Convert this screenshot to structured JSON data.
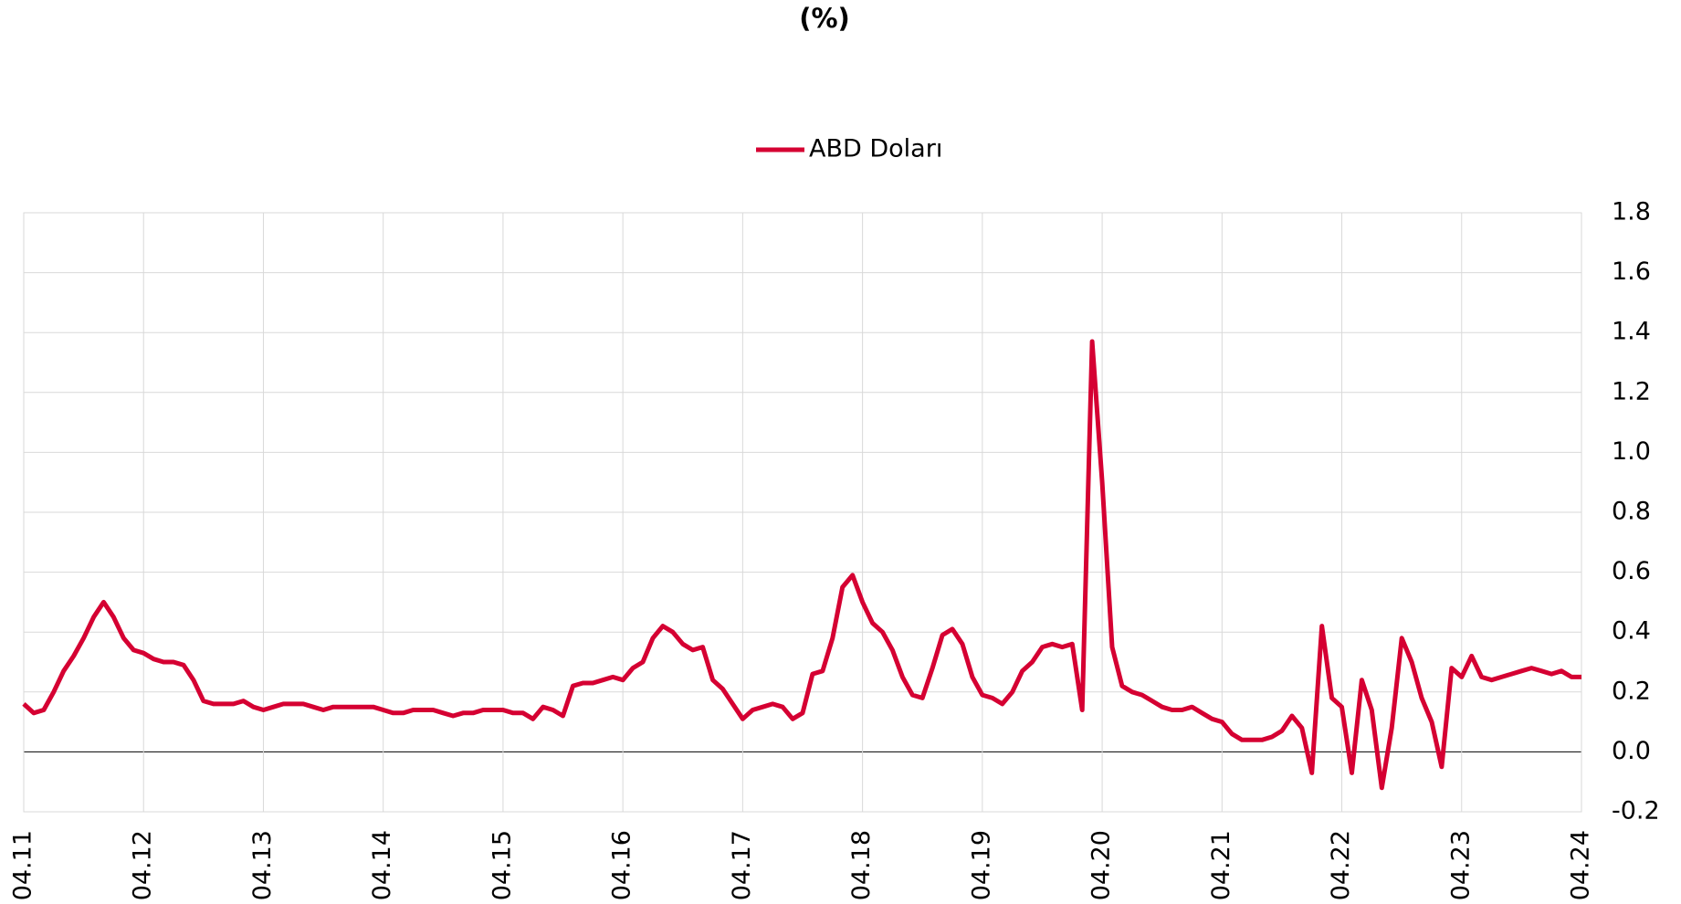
{
  "chart_data": {
    "type": "line",
    "title": "(%)",
    "categories": [
      "04.11",
      null,
      null,
      null,
      null,
      null,
      null,
      null,
      null,
      null,
      null,
      null,
      "04.12",
      null,
      null,
      null,
      null,
      null,
      null,
      null,
      null,
      null,
      null,
      null,
      "04.13",
      null,
      null,
      null,
      null,
      null,
      null,
      null,
      null,
      null,
      null,
      null,
      "04.14",
      null,
      null,
      null,
      null,
      null,
      null,
      null,
      null,
      null,
      null,
      null,
      "04.15",
      null,
      null,
      null,
      null,
      null,
      null,
      null,
      null,
      null,
      null,
      null,
      "04.16",
      null,
      null,
      null,
      null,
      null,
      null,
      null,
      null,
      null,
      null,
      null,
      "04.17",
      null,
      null,
      null,
      null,
      null,
      null,
      null,
      null,
      null,
      null,
      null,
      "04.18",
      null,
      null,
      null,
      null,
      null,
      null,
      null,
      null,
      null,
      null,
      null,
      "04.19",
      null,
      null,
      null,
      null,
      null,
      null,
      null,
      null,
      null,
      null,
      null,
      "04.20",
      null,
      null,
      null,
      null,
      null,
      null,
      null,
      null,
      null,
      null,
      null,
      "04.21",
      null,
      null,
      null,
      null,
      null,
      null,
      null,
      null,
      null,
      null,
      null,
      "04.22",
      null,
      null,
      null,
      null,
      null,
      null,
      null,
      null,
      null,
      null,
      null,
      "04.23",
      null,
      null,
      null,
      null,
      null,
      null,
      null,
      null,
      null,
      null,
      null,
      "04.24"
    ],
    "series": [
      {
        "name": "ABD Doları",
        "color": "#d50032",
        "values": [
          0.16,
          0.13,
          0.14,
          0.2,
          0.27,
          0.32,
          0.38,
          0.45,
          0.5,
          0.45,
          0.38,
          0.34,
          0.33,
          0.31,
          0.3,
          0.3,
          0.29,
          0.24,
          0.17,
          0.16,
          0.16,
          0.16,
          0.17,
          0.15,
          0.14,
          0.15,
          0.16,
          0.16,
          0.16,
          0.15,
          0.14,
          0.15,
          0.15,
          0.15,
          0.15,
          0.15,
          0.14,
          0.13,
          0.13,
          0.14,
          0.14,
          0.14,
          0.13,
          0.12,
          0.13,
          0.13,
          0.14,
          0.14,
          0.14,
          0.13,
          0.13,
          0.11,
          0.15,
          0.14,
          0.12,
          0.22,
          0.23,
          0.23,
          0.24,
          0.25,
          0.24,
          0.28,
          0.3,
          0.38,
          0.42,
          0.4,
          0.36,
          0.34,
          0.35,
          0.24,
          0.21,
          0.16,
          0.11,
          0.14,
          0.15,
          0.16,
          0.15,
          0.11,
          0.13,
          0.26,
          0.27,
          0.38,
          0.55,
          0.59,
          0.5,
          0.43,
          0.4,
          0.34,
          0.25,
          0.19,
          0.18,
          0.28,
          0.39,
          0.41,
          0.36,
          0.25,
          0.19,
          0.18,
          0.16,
          0.2,
          0.27,
          0.3,
          0.35,
          0.36,
          0.35,
          0.36,
          0.14,
          1.37,
          0.9,
          0.35,
          0.22,
          0.2,
          0.19,
          0.17,
          0.15,
          0.14,
          0.14,
          0.15,
          0.13,
          0.11,
          0.1,
          0.06,
          0.04,
          0.04,
          0.04,
          0.05,
          0.07,
          0.12,
          0.08,
          -0.07,
          0.42,
          0.18,
          0.15,
          -0.07,
          0.24,
          0.14,
          -0.12,
          0.08,
          0.38,
          0.3,
          0.18,
          0.1,
          -0.05,
          0.28,
          0.25,
          0.32,
          0.25,
          0.24,
          0.25,
          0.26,
          0.27,
          0.28,
          0.27,
          0.26,
          0.27,
          0.25,
          0.25
        ]
      }
    ],
    "ylim": [
      -0.2,
      1.8
    ],
    "yticks": [
      -0.2,
      {
        "value": 0,
        "label": "0.0"
      },
      0.2,
      0.4,
      0.6,
      0.8,
      {
        "value": 1,
        "label": "1.0"
      },
      1.2,
      1.4,
      1.6,
      1.8
    ],
    "grid": true,
    "legend": "top"
  }
}
